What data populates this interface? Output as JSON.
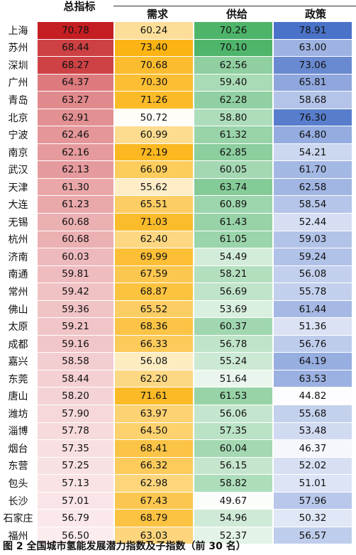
{
  "table": {
    "headers": {
      "total": "总指标",
      "demand": "需求",
      "supply": "供给",
      "policy": "政策"
    },
    "rows": [
      {
        "city": "上海",
        "total": "70.78",
        "demand": "60.24",
        "supply": "70.26",
        "policy": "78.91"
      },
      {
        "city": "苏州",
        "total": "68.44",
        "demand": "73.40",
        "supply": "70.10",
        "policy": "63.00"
      },
      {
        "city": "深圳",
        "total": "68.27",
        "demand": "70.68",
        "supply": "62.56",
        "policy": "73.06"
      },
      {
        "city": "广州",
        "total": "64.37",
        "demand": "70.30",
        "supply": "59.40",
        "policy": "65.81"
      },
      {
        "city": "青岛",
        "total": "63.27",
        "demand": "71.26",
        "supply": "62.28",
        "policy": "58.68"
      },
      {
        "city": "北京",
        "total": "62.91",
        "demand": "50.72",
        "supply": "58.80",
        "policy": "76.30"
      },
      {
        "city": "宁波",
        "total": "62.46",
        "demand": "60.99",
        "supply": "61.32",
        "policy": "64.80"
      },
      {
        "city": "南京",
        "total": "62.16",
        "demand": "72.19",
        "supply": "62.85",
        "policy": "54.21"
      },
      {
        "city": "武汉",
        "total": "62.13",
        "demand": "66.09",
        "supply": "60.05",
        "policy": "61.70"
      },
      {
        "city": "天津",
        "total": "61.30",
        "demand": "55.62",
        "supply": "63.74",
        "policy": "62.58"
      },
      {
        "city": "大连",
        "total": "61.23",
        "demand": "65.51",
        "supply": "60.89",
        "policy": "58.54"
      },
      {
        "city": "无锡",
        "total": "60.68",
        "demand": "71.03",
        "supply": "61.43",
        "policy": "52.44"
      },
      {
        "city": "杭州",
        "total": "60.68",
        "demand": "62.40",
        "supply": "61.05",
        "policy": "59.03"
      },
      {
        "city": "济南",
        "total": "60.03",
        "demand": "69.99",
        "supply": "54.49",
        "policy": "59.24"
      },
      {
        "city": "南通",
        "total": "59.81",
        "demand": "67.59",
        "supply": "58.21",
        "policy": "56.08"
      },
      {
        "city": "常州",
        "total": "59.42",
        "demand": "68.87",
        "supply": "56.69",
        "policy": "55.78"
      },
      {
        "city": "佛山",
        "total": "59.36",
        "demand": "65.52",
        "supply": "53.69",
        "policy": "61.44"
      },
      {
        "city": "太原",
        "total": "59.21",
        "demand": "68.36",
        "supply": "60.37",
        "policy": "51.36"
      },
      {
        "city": "成都",
        "total": "59.16",
        "demand": "66.33",
        "supply": "56.78",
        "policy": "56.76"
      },
      {
        "city": "嘉兴",
        "total": "58.58",
        "demand": "56.08",
        "supply": "55.24",
        "policy": "64.19"
      },
      {
        "city": "东莞",
        "total": "58.44",
        "demand": "62.20",
        "supply": "51.64",
        "policy": "63.53"
      },
      {
        "city": "唐山",
        "total": "58.20",
        "demand": "71.61",
        "supply": "61.53",
        "policy": "44.82"
      },
      {
        "city": "潍坊",
        "total": "57.90",
        "demand": "63.97",
        "supply": "56.06",
        "policy": "55.68"
      },
      {
        "city": "淄博",
        "total": "57.78",
        "demand": "64.50",
        "supply": "57.35",
        "policy": "53.48"
      },
      {
        "city": "烟台",
        "total": "57.35",
        "demand": "68.41",
        "supply": "60.04",
        "policy": "46.37"
      },
      {
        "city": "东营",
        "total": "57.25",
        "demand": "66.32",
        "supply": "56.15",
        "policy": "52.02"
      },
      {
        "city": "包头",
        "total": "57.13",
        "demand": "62.98",
        "supply": "58.82",
        "policy": "51.01"
      },
      {
        "city": "长沙",
        "total": "57.01",
        "demand": "67.43",
        "supply": "49.67",
        "policy": "57.96"
      },
      {
        "city": "石家庄",
        "total": "56.79",
        "demand": "68.79",
        "supply": "54.96",
        "policy": "50.32"
      },
      {
        "city": "福州",
        "total": "56.50",
        "demand": "63.03",
        "supply": "52.37",
        "policy": "56.57"
      }
    ]
  },
  "caption": "图 2  全国城市氢能发展潜力指数及子指数（前 30 名）",
  "colors": {
    "total": {
      "low": "#fbecee",
      "high": "#c41e22"
    },
    "demand": {
      "low": "#fffdf7",
      "high": "#fbb414"
    },
    "supply": {
      "low": "#fbfdfb",
      "high": "#4eb46a"
    },
    "policy": {
      "low": "#fdfdff",
      "high": "#4a72c8"
    }
  }
}
